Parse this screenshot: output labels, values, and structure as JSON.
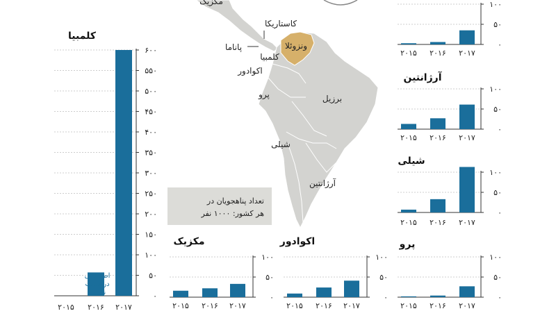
{
  "colors": {
    "bar": "#1a6e9b",
    "land": "#d3d3d0",
    "land_border": "#ffffff",
    "venezuela": "#d6b06a",
    "legend_box": "#dcdcd8",
    "axis": "#333333"
  },
  "map": {
    "labels": {
      "mexico_cut": "مکزیک",
      "costa_rica": "کاستاریکا",
      "panama": "پاناما",
      "colombia": "کلمبیا",
      "venezuela": "ونزوئلا",
      "ecuador": "اکوادور",
      "peru": "پرو",
      "brazil": "برزیل",
      "chile": "شیلی",
      "argentina": "آرژانتین"
    }
  },
  "legend": {
    "line1": "تعداد پناهجویان در",
    "line2": "هر کشور:  ۱۰۰۰ نفر"
  },
  "chart_data": [
    {
      "type": "bar",
      "title": "کلمبیا",
      "categories": [
        "۲۰۱۵",
        "۲۰۱۶",
        "۲۰۱۷"
      ],
      "values": [
        null,
        57,
        600
      ],
      "ylim": [
        0,
        600
      ],
      "yticks": [
        "۰",
        "۵۰",
        "۱۰۰",
        "۱۵۰",
        "۲۰۰",
        "۲۵۰",
        "۳۰۰",
        "۳۵۰",
        "۴۰۰",
        "۴۵۰",
        "۵۰۰",
        "۵۵۰",
        "۶۰۰"
      ],
      "annotation": [
        "اطلاعاتی",
        "در دست",
        "نیست"
      ]
    },
    {
      "type": "bar",
      "title": "",
      "categories": [
        "۲۰۱۵",
        "۲۰۱۶",
        "۲۰۱۷"
      ],
      "values": [
        3,
        6,
        35
      ],
      "ylim": [
        0,
        100
      ],
      "yticks": [
        "۰",
        "۵۰",
        "۱۰۰"
      ]
    },
    {
      "type": "bar",
      "title": "آرژانتین",
      "categories": [
        "۲۰۱۵",
        "۲۰۱۶",
        "۲۰۱۷"
      ],
      "values": [
        13,
        27,
        61
      ],
      "ylim": [
        0,
        100
      ],
      "yticks": [
        "۰",
        "۵۰",
        "۱۰۰"
      ]
    },
    {
      "type": "bar",
      "title": "شیلی",
      "categories": [
        "۲۰۱۵",
        "۲۰۱۶",
        "۲۰۱۷"
      ],
      "values": [
        7,
        33,
        113
      ],
      "ylim": [
        0,
        100
      ],
      "yticks": [
        "۰",
        "۵۰",
        "۱۰۰"
      ]
    },
    {
      "type": "bar",
      "title": "مکزیک",
      "categories": [
        "۲۰۱۵",
        "۲۰۱۶",
        "۲۰۱۷"
      ],
      "values": [
        16,
        22,
        33
      ],
      "ylim": [
        0,
        100
      ],
      "yticks": [
        "۰",
        "۵۰",
        "۱۰۰"
      ]
    },
    {
      "type": "bar",
      "title": "اکوادور",
      "categories": [
        "۲۰۱۵",
        "۲۰۱۶",
        "۲۰۱۷"
      ],
      "values": [
        9,
        24,
        41
      ],
      "ylim": [
        0,
        100
      ],
      "yticks": [
        "۰",
        "۵۰",
        "۱۰۰"
      ]
    },
    {
      "type": "bar",
      "title": "پرو",
      "categories": [
        "۲۰۱۵",
        "۲۰۱۶",
        "۲۰۱۷"
      ],
      "values": [
        2,
        4,
        27
      ],
      "ylim": [
        0,
        100
      ],
      "yticks": [
        "۰",
        "۵۰",
        "۱۰۰"
      ]
    }
  ]
}
